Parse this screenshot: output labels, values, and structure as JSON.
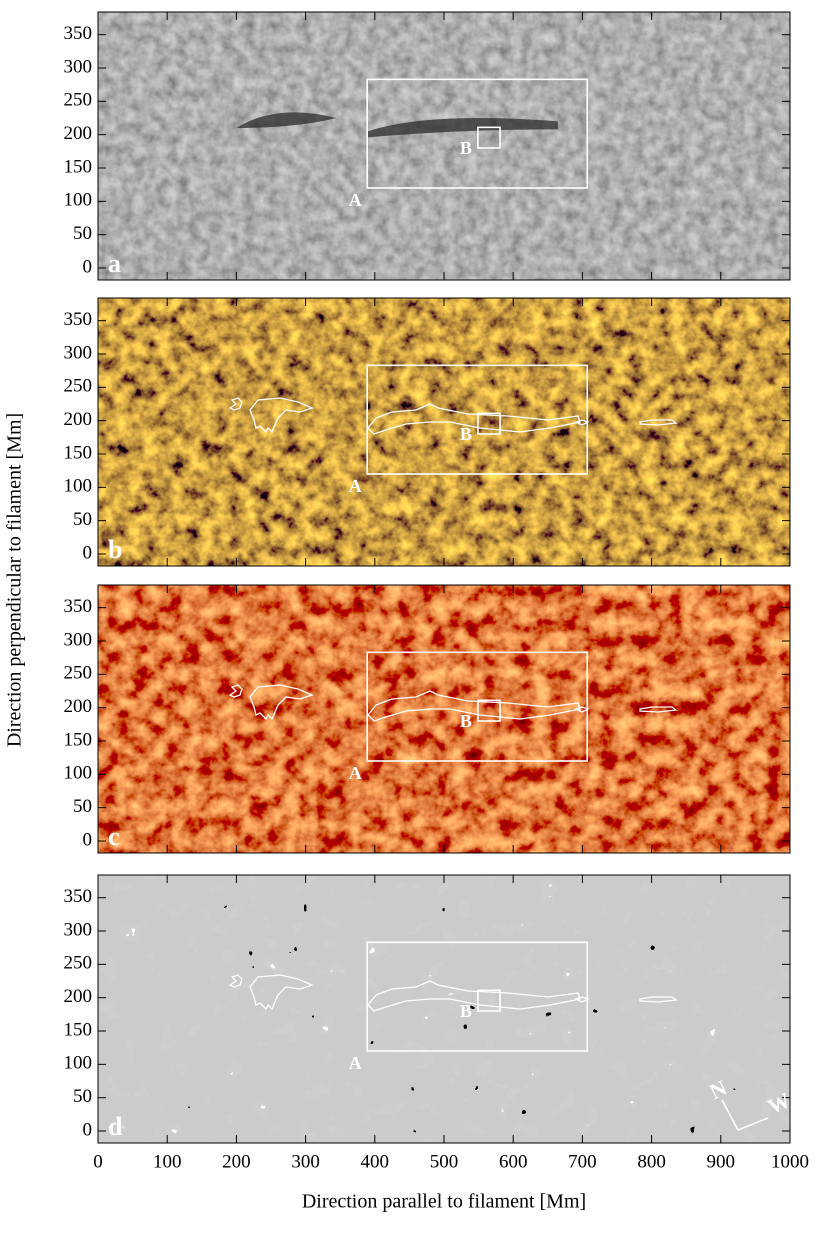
{
  "figure": {
    "panels": [
      {
        "label": "a"
      },
      {
        "label": "b"
      },
      {
        "label": "c"
      },
      {
        "label": "d"
      }
    ],
    "xlabel": "Direction parallel to filament   [Mm]",
    "ylabel": "Direction perpendicular to filament [Mm]",
    "xlim": [
      0,
      1000
    ],
    "ylim": [
      -18,
      384
    ],
    "xticks": [
      0,
      100,
      200,
      300,
      400,
      500,
      600,
      700,
      800,
      900,
      1000
    ],
    "yticks": [
      0,
      50,
      100,
      150,
      200,
      250,
      300,
      350
    ],
    "box_A": {
      "label": "A",
      "x": [
        389,
        707
      ],
      "y": [
        120,
        283
      ]
    },
    "box_B": {
      "label": "B",
      "x": [
        549,
        581
      ],
      "y": [
        180,
        211
      ]
    },
    "compass": [
      "N",
      "W"
    ]
  }
}
